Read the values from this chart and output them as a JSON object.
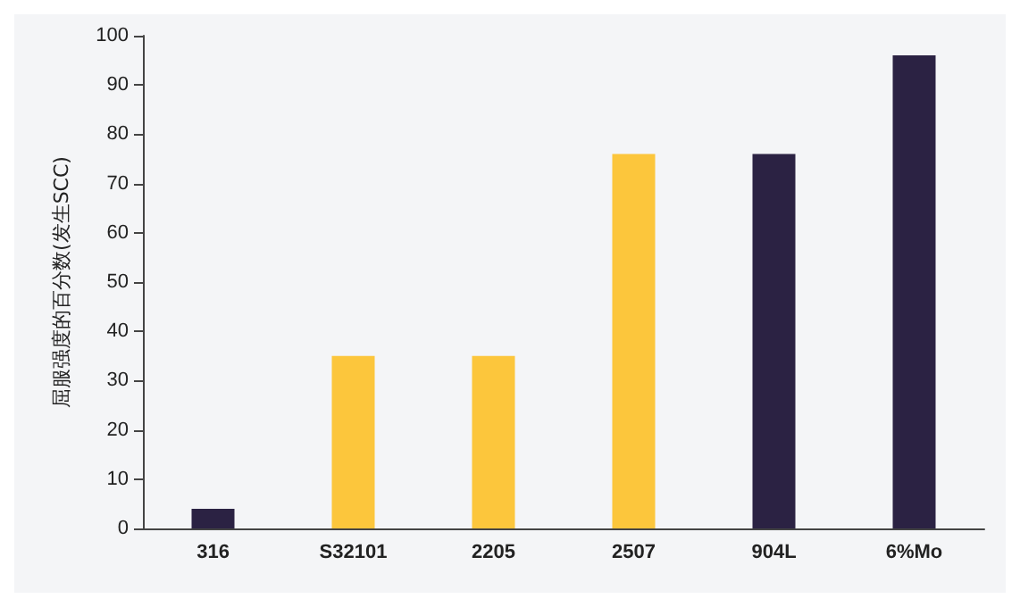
{
  "chart_data": {
    "type": "bar",
    "ylabel": "屈服强度的百分数(发生SCC)",
    "categories": [
      "316",
      "S32101",
      "2205",
      "2507",
      "904L",
      "6%Mo"
    ],
    "values": [
      4,
      35,
      35,
      76,
      76,
      96
    ],
    "colors": [
      "#2b2243",
      "#fcc63c",
      "#fcc63c",
      "#fcc63c",
      "#2b2243",
      "#2b2243"
    ],
    "ylim": [
      0,
      100
    ],
    "yticks": [
      0,
      10,
      20,
      30,
      40,
      50,
      60,
      70,
      80,
      90,
      100
    ],
    "grid": false
  }
}
